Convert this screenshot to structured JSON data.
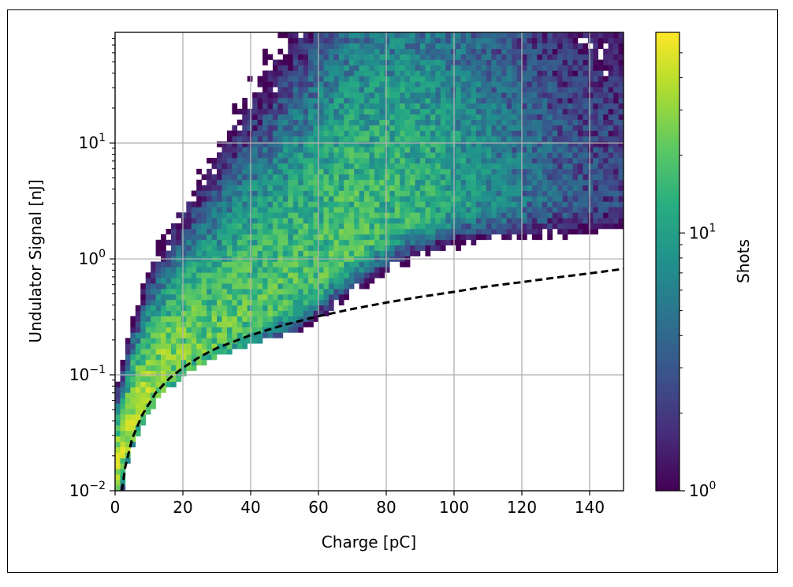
{
  "chart_data": {
    "type": "heatmap",
    "title": "",
    "xlabel": "Charge [pC]",
    "ylabel": "Undulator Signal [nJ]",
    "colorbar_label": "Shots",
    "x_scale": "linear",
    "y_scale": "log",
    "xlim": [
      0,
      150
    ],
    "ylim": [
      0.01,
      90
    ],
    "x_ticks": [
      0,
      20,
      40,
      60,
      80,
      100,
      120,
      140
    ],
    "x_tick_labels": [
      "0",
      "20",
      "40",
      "60",
      "80",
      "100",
      "120",
      "140"
    ],
    "y_ticks": [
      0.01,
      0.1,
      1,
      10
    ],
    "y_tick_labels": [
      {
        "base": "10",
        "exp": "−2"
      },
      {
        "base": "10",
        "exp": "−1"
      },
      {
        "base": "10",
        "exp": "0"
      },
      {
        "base": "10",
        "exp": "1"
      }
    ],
    "colorbar_scale": "log",
    "colorbar_lim": [
      1,
      60
    ],
    "colorbar_ticks": [
      1,
      10
    ],
    "colorbar_tick_labels": [
      {
        "base": "10",
        "exp": "0"
      },
      {
        "base": "10",
        "exp": "1"
      }
    ],
    "colormap": "viridis",
    "grid": true,
    "bins": {
      "x_count": 100,
      "y_count": 84
    },
    "density_ridge": {
      "description": "approximate dense-core of shot distribution (2D histogram of shots)",
      "x": [
        1,
        5,
        10,
        15,
        20,
        25,
        30,
        35,
        40,
        50,
        60,
        70,
        80,
        90,
        100,
        110,
        120,
        130,
        140,
        150
      ],
      "y": [
        0.016,
        0.04,
        0.075,
        0.11,
        0.14,
        0.165,
        0.2,
        0.25,
        0.32,
        0.45,
        0.7,
        1.2,
        1.8,
        2.5,
        2.8,
        3.0,
        3.0,
        3.0,
        3.0,
        3.0
      ]
    },
    "series": [
      {
        "type": "line",
        "style": "dashed",
        "color": "#000000",
        "x": [
          2,
          3,
          5,
          8,
          12,
          16,
          20,
          25,
          30,
          40,
          50,
          60,
          70,
          80,
          90,
          100,
          110,
          120,
          130,
          140,
          150
        ],
        "y": [
          0.01,
          0.016,
          0.028,
          0.045,
          0.07,
          0.093,
          0.115,
          0.143,
          0.17,
          0.22,
          0.27,
          0.32,
          0.37,
          0.42,
          0.47,
          0.52,
          0.58,
          0.63,
          0.69,
          0.75,
          0.82
        ]
      }
    ]
  }
}
